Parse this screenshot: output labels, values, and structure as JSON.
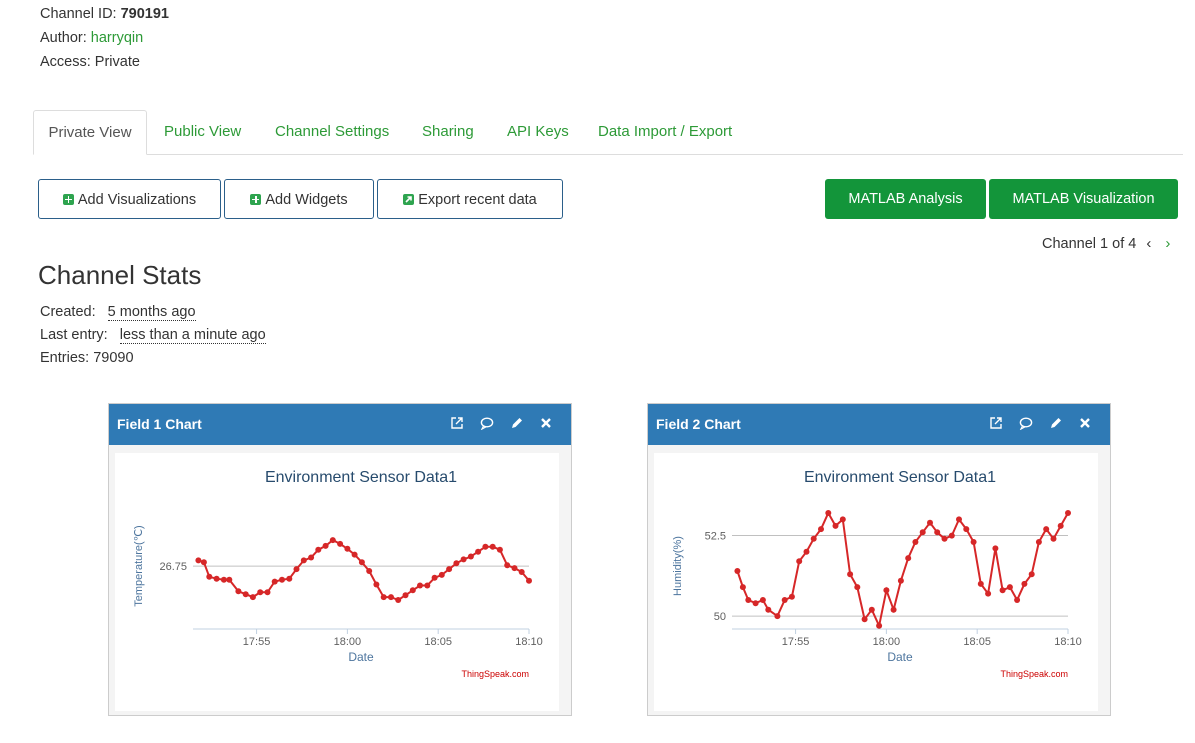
{
  "channel": {
    "id_label": "Channel ID:",
    "id_value": "790191",
    "author_label": "Author:",
    "author_value": "harryqin",
    "access_label": "Access:",
    "access_value": "Private"
  },
  "tabs": [
    {
      "label": "Private View",
      "active": true
    },
    {
      "label": "Public View"
    },
    {
      "label": "Channel Settings"
    },
    {
      "label": "Sharing"
    },
    {
      "label": "API Keys"
    },
    {
      "label": "Data Import / Export"
    }
  ],
  "toolbar": {
    "add_visualizations": "Add Visualizations",
    "add_widgets": "Add Widgets",
    "export_recent": "Export recent data",
    "matlab_analysis": "MATLAB Analysis",
    "matlab_visualization": "MATLAB Visualization"
  },
  "pager": {
    "text": "Channel 1 of 4",
    "prev_icon": "chevron-left-icon",
    "next_icon": "chevron-right-icon"
  },
  "stats": {
    "heading": "Channel Stats",
    "created_label": "Created:",
    "created_value": "5 months ago",
    "last_entry_label": "Last entry:",
    "last_entry_value": "less than a minute ago",
    "entries_label": "Entries:",
    "entries_value": "79090"
  },
  "colors": {
    "accent_green": "#13953a",
    "link_green": "#2d9a37",
    "panel_blue": "#2f7ab5",
    "series_red": "#d62728"
  },
  "panels": [
    {
      "title": "Field 1 Chart",
      "icons": [
        "external-link-icon",
        "comment-icon",
        "pencil-icon",
        "close-icon"
      ]
    },
    {
      "title": "Field 2 Chart",
      "icons": [
        "external-link-icon",
        "comment-icon",
        "pencil-icon",
        "close-icon"
      ]
    }
  ],
  "chart_data": [
    {
      "type": "line",
      "title": "Environment Sensor Data1",
      "xlabel": "Date",
      "ylabel": "Temperature(℃)",
      "credit": "ThingSpeak.com",
      "x_ticks": [
        "17:55",
        "18:00",
        "18:05",
        "18:10"
      ],
      "x_range_minutes": [
        -3.5,
        15.0
      ],
      "y_ticks": [
        26.75
      ],
      "ylim": [
        26.1,
        27.3
      ],
      "grid": true,
      "x_minutes": [
        -3.2,
        -2.9,
        -2.6,
        -2.2,
        -1.8,
        -1.5,
        -1.0,
        -0.6,
        -0.2,
        0.2,
        0.6,
        1.0,
        1.4,
        1.8,
        2.2,
        2.6,
        3.0,
        3.4,
        3.8,
        4.2,
        4.6,
        5.0,
        5.4,
        5.8,
        6.2,
        6.6,
        7.0,
        7.4,
        7.8,
        8.2,
        8.6,
        9.0,
        9.4,
        9.8,
        10.2,
        10.6,
        11.0,
        11.4,
        11.8,
        12.2,
        12.6,
        13.0,
        13.4,
        13.8,
        14.2,
        14.6,
        15.0
      ],
      "values": [
        26.81,
        26.79,
        26.64,
        26.62,
        26.61,
        26.61,
        26.49,
        26.46,
        26.43,
        26.48,
        26.48,
        26.59,
        26.61,
        26.62,
        26.72,
        26.81,
        26.84,
        26.92,
        26.96,
        27.02,
        26.98,
        26.93,
        26.87,
        26.79,
        26.7,
        26.56,
        26.43,
        26.43,
        26.4,
        26.45,
        26.5,
        26.55,
        26.55,
        26.63,
        26.66,
        26.72,
        26.78,
        26.82,
        26.85,
        26.9,
        26.95,
        26.95,
        26.92,
        26.76,
        26.73,
        26.69,
        26.6
      ]
    },
    {
      "type": "line",
      "title": "Environment Sensor Data1",
      "xlabel": "Date",
      "ylabel": "Humidity(%)",
      "credit": "ThingSpeak.com",
      "x_ticks": [
        "17:55",
        "18:00",
        "18:05",
        "18:10"
      ],
      "x_range_minutes": [
        -3.5,
        15.0
      ],
      "y_ticks": [
        50,
        52.5
      ],
      "ylim": [
        49.6,
        53.2
      ],
      "grid": true,
      "x_minutes": [
        -3.2,
        -2.9,
        -2.6,
        -2.2,
        -1.8,
        -1.5,
        -1.0,
        -0.6,
        -0.2,
        0.2,
        0.6,
        1.0,
        1.4,
        1.8,
        2.2,
        2.6,
        3.0,
        3.4,
        3.8,
        4.2,
        4.6,
        5.0,
        5.4,
        5.8,
        6.2,
        6.6,
        7.0,
        7.4,
        7.8,
        8.2,
        8.6,
        9.0,
        9.4,
        9.8,
        10.2,
        10.6,
        11.0,
        11.4,
        11.8,
        12.2,
        12.6,
        13.0,
        13.4,
        13.8,
        14.2,
        14.6,
        15.0
      ],
      "values": [
        51.4,
        50.9,
        50.5,
        50.4,
        50.5,
        50.2,
        50.0,
        50.5,
        50.6,
        51.7,
        52.0,
        52.4,
        52.7,
        53.2,
        52.8,
        53.0,
        51.3,
        50.9,
        49.9,
        50.2,
        49.7,
        50.8,
        50.2,
        51.1,
        51.8,
        52.3,
        52.6,
        52.9,
        52.6,
        52.4,
        52.5,
        53.0,
        52.7,
        52.3,
        51.0,
        50.7,
        52.1,
        50.8,
        50.9,
        50.5,
        51.0,
        51.3,
        52.3,
        52.7,
        52.4,
        52.8,
        53.2
      ]
    }
  ]
}
